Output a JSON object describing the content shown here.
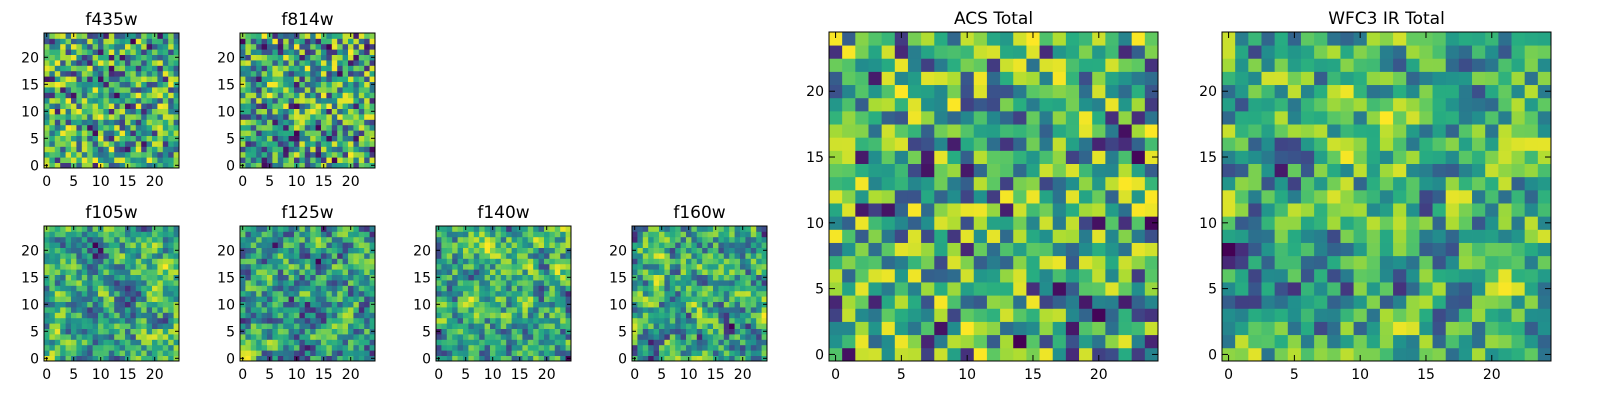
{
  "chart_data": [
    {
      "type": "heatmap",
      "title": "f435w",
      "xticks": [
        0,
        5,
        10,
        15,
        20
      ],
      "yticks": [
        0,
        5,
        10,
        15,
        20
      ],
      "grid_size": 25,
      "colormap": "viridis",
      "pattern_seed": 11,
      "pattern_style": "noise"
    },
    {
      "type": "heatmap",
      "title": "f814w",
      "xticks": [
        0,
        5,
        10,
        15,
        20
      ],
      "yticks": [
        0,
        5,
        10,
        15,
        20
      ],
      "grid_size": 25,
      "colormap": "viridis",
      "pattern_seed": 23,
      "pattern_style": "noise"
    },
    {
      "type": "heatmap",
      "title": "f105w",
      "xticks": [
        0,
        5,
        10,
        15,
        20
      ],
      "yticks": [
        0,
        5,
        10,
        15,
        20
      ],
      "grid_size": 25,
      "colormap": "viridis",
      "pattern_seed": 37,
      "pattern_style": "smooth"
    },
    {
      "type": "heatmap",
      "title": "f125w",
      "xticks": [
        0,
        5,
        10,
        15,
        20
      ],
      "yticks": [
        0,
        5,
        10,
        15,
        20
      ],
      "grid_size": 25,
      "colormap": "viridis",
      "pattern_seed": 41,
      "pattern_style": "smooth"
    },
    {
      "type": "heatmap",
      "title": "f140w",
      "xticks": [
        0,
        5,
        10,
        15,
        20
      ],
      "yticks": [
        0,
        5,
        10,
        15,
        20
      ],
      "grid_size": 25,
      "colormap": "viridis",
      "pattern_seed": 53,
      "pattern_style": "smooth"
    },
    {
      "type": "heatmap",
      "title": "f160w",
      "xticks": [
        0,
        5,
        10,
        15,
        20
      ],
      "yticks": [
        0,
        5,
        10,
        15,
        20
      ],
      "grid_size": 25,
      "colormap": "viridis",
      "pattern_seed": 67,
      "pattern_style": "smooth"
    },
    {
      "type": "heatmap",
      "title": "ACS Total",
      "xticks": [
        0,
        5,
        10,
        15,
        20
      ],
      "yticks": [
        0,
        5,
        10,
        15,
        20
      ],
      "grid_size": 25,
      "colormap": "viridis",
      "pattern_seed": 79,
      "pattern_style": "noise"
    },
    {
      "type": "heatmap",
      "title": "WFC3 IR Total",
      "xticks": [
        0,
        5,
        10,
        15,
        20
      ],
      "yticks": [
        0,
        5,
        10,
        15,
        20
      ],
      "grid_size": 25,
      "colormap": "viridis",
      "pattern_seed": 97,
      "pattern_style": "smooth"
    }
  ],
  "colors": {
    "viridis_dark": "#440154",
    "viridis_blue": "#31688e",
    "viridis_teal": "#21908d",
    "viridis_green": "#35b779",
    "viridis_yellow": "#fde725"
  }
}
